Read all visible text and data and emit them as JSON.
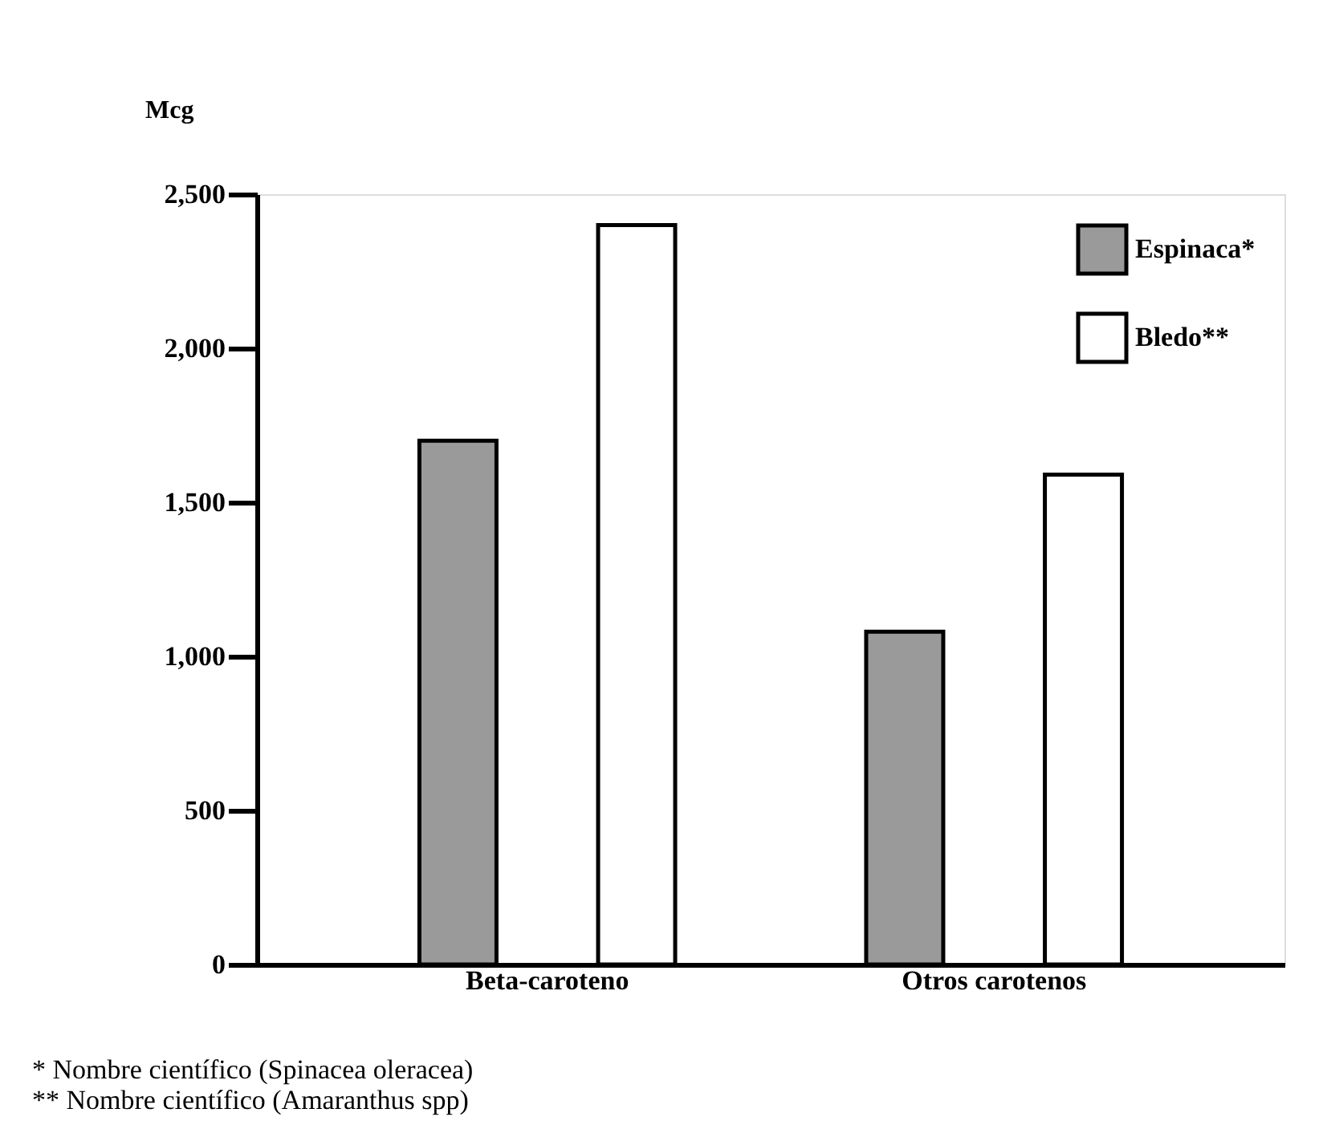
{
  "chart_data": {
    "type": "bar",
    "ylabel": "Mcg",
    "categories": [
      "Beta-caroteno",
      "Otros carotenos"
    ],
    "series": [
      {
        "name": "Espinaca*",
        "color": "#9a9a9a",
        "values": [
          1700,
          1080
        ]
      },
      {
        "name": "Bledo**",
        "color": "#ffffff",
        "values": [
          2400,
          1590
        ]
      }
    ],
    "ylim": [
      0,
      2500
    ],
    "yticks": [
      0,
      {
        "value": 500,
        "label": "500"
      },
      {
        "value": 1000,
        "label": "1,000"
      },
      {
        "value": 1500,
        "label": "1,500"
      },
      {
        "value": 2000,
        "label": "2,000"
      },
      {
        "value": 2500,
        "label": "2,500"
      }
    ],
    "grid": false,
    "legend": "top right",
    "annotations": [
      "*    Nombre científico (Spinacea oleracea)",
      "**   Nombre científico (Amaranthus spp)"
    ]
  }
}
